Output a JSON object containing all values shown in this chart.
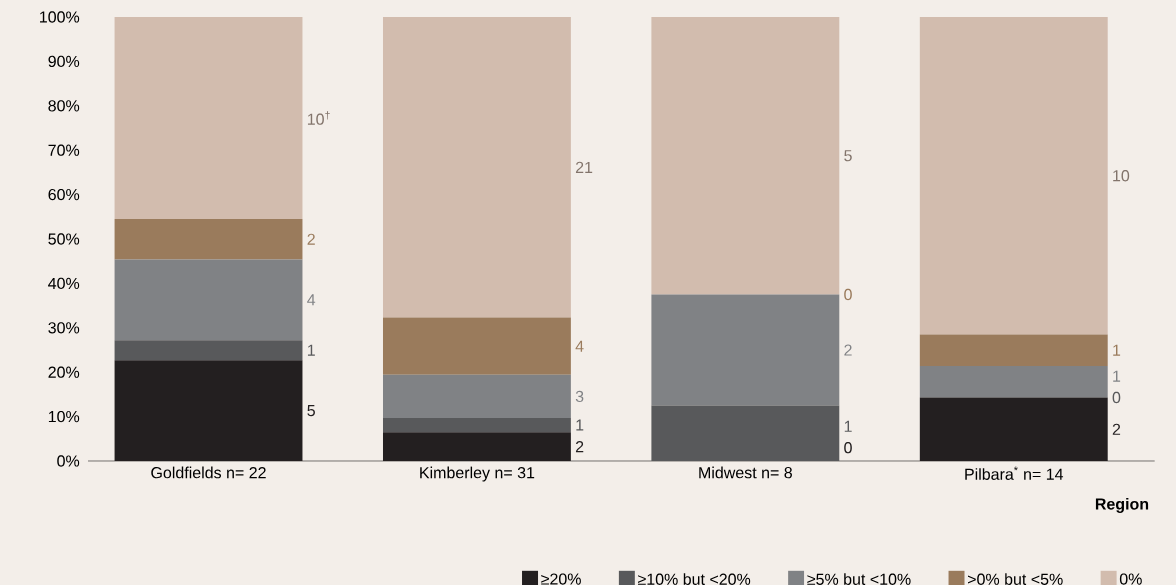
{
  "chart_data": {
    "type": "bar",
    "stacked": true,
    "xlabel": "**Region**",
    "categories": [
      "Goldfields  n= 22",
      "Kimberley  n= 31",
      "Midwest  n= 8",
      "Pilbara$^{*}$ n= 14"
    ],
    "series": [
      {
        "name": "≥20%",
        "color": "#231f20",
        "values": [
          22.7,
          6.5,
          0,
          14.3
        ]
      },
      {
        "name": "≥10% but <20%",
        "color": "#58595b",
        "values": [
          4.5,
          3.2,
          12.5,
          0
        ]
      },
      {
        "name": "≥5% but <10%",
        "color": "#808285",
        "values": [
          18.2,
          9.7,
          25,
          7.1
        ]
      },
      {
        "name": ">0% but <5%",
        "color": "#9a7b5c",
        "values": [
          9.1,
          12.9,
          0,
          7.1
        ]
      },
      {
        "name": "0%",
        "color": "#d2bcae",
        "values": [
          45.5,
          67.7,
          62.5,
          71.5
        ]
      }
    ],
    "annotations": [
      "5",
      "1",
      "4",
      "2",
      "10$^{†}$",
      "2",
      "1",
      "3",
      "4",
      "21",
      "0",
      "1",
      "2",
      "0",
      "5",
      "2",
      "0",
      "1",
      "1",
      "10"
    ],
    "ylim": [
      0,
      100
    ],
    "yticks": [
      {
        "value": 0,
        "label": "0%"
      },
      {
        "value": 10,
        "label": "10%"
      },
      {
        "value": 20,
        "label": "20%"
      },
      {
        "value": 30,
        "label": "30%"
      },
      {
        "value": 40,
        "label": "40%"
      },
      {
        "value": 50,
        "label": "50%"
      },
      {
        "value": 60,
        "label": "60%"
      },
      {
        "value": 70,
        "label": "70%"
      },
      {
        "value": 80,
        "label": "80%"
      },
      {
        "value": 90,
        "label": "90%"
      },
      {
        "value": 100,
        "label": "100%"
      }
    ],
    "grid": false,
    "legend": "bottom right"
  }
}
